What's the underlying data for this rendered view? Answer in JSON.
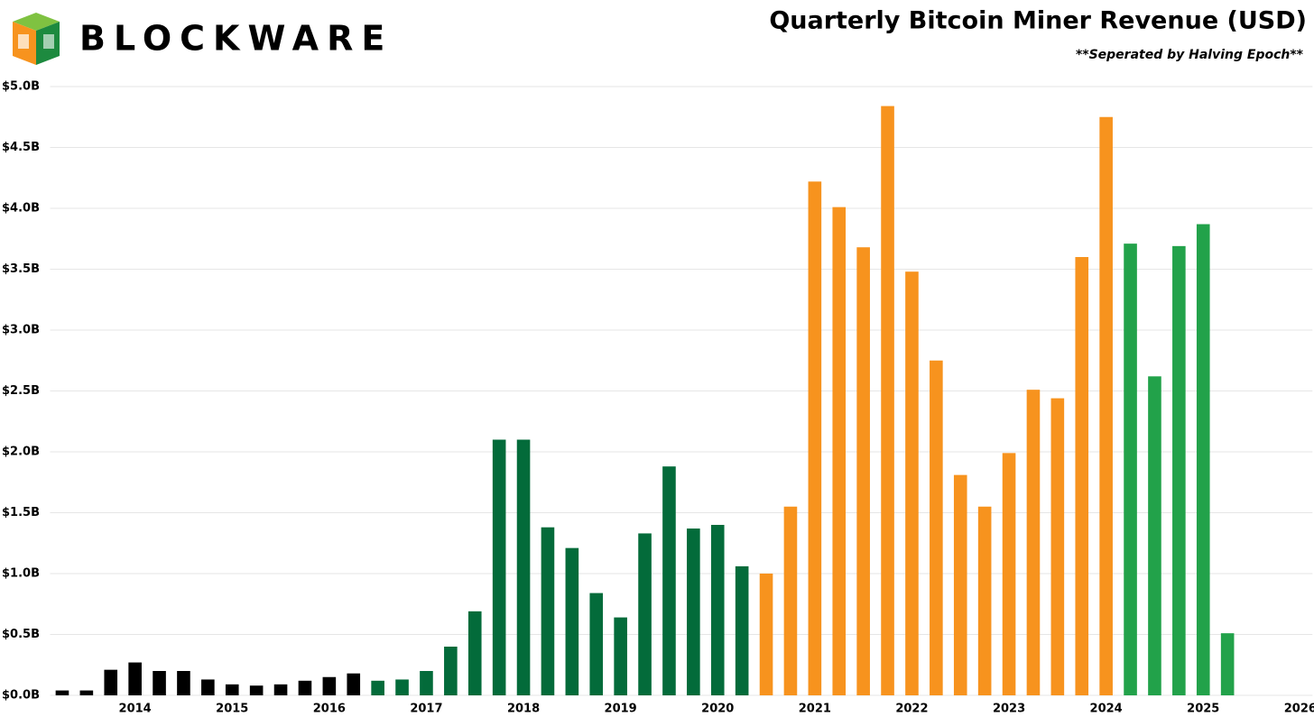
{
  "brand": "BLOCKWARE",
  "chart_data": {
    "type": "bar",
    "title": "Quarterly Bitcoin Miner Revenue (USD)",
    "subtitle": "**Seperated by Halving Epoch**",
    "categories": [
      null,
      null,
      null,
      "2014",
      null,
      null,
      null,
      "2015",
      null,
      null,
      null,
      "2016",
      null,
      null,
      null,
      "2017",
      null,
      null,
      null,
      "2018",
      null,
      null,
      null,
      "2019",
      null,
      null,
      null,
      "2020",
      null,
      null,
      null,
      "2021",
      null,
      null,
      null,
      "2022",
      null,
      null,
      null,
      "2023",
      null,
      null,
      null,
      "2024",
      null,
      null,
      null,
      "2025",
      null,
      null,
      null,
      "2026"
    ],
    "values": [
      0.04,
      0.04,
      0.21,
      0.27,
      0.2,
      0.2,
      0.13,
      0.09,
      0.08,
      0.09,
      0.12,
      0.15,
      0.18,
      0.12,
      0.13,
      0.2,
      0.4,
      0.69,
      2.1,
      2.1,
      1.38,
      1.21,
      0.84,
      0.64,
      1.33,
      1.88,
      1.37,
      1.4,
      1.06,
      1.0,
      1.55,
      4.22,
      4.01,
      3.68,
      4.84,
      3.48,
      2.75,
      1.81,
      1.55,
      1.99,
      2.51,
      2.44,
      3.6,
      4.75,
      3.71,
      2.62,
      3.69,
      3.87,
      0.51,
      null,
      null,
      null
    ],
    "colors": [
      "#000000",
      "#000000",
      "#000000",
      "#000000",
      "#000000",
      "#000000",
      "#000000",
      "#000000",
      "#000000",
      "#000000",
      "#000000",
      "#000000",
      "#000000",
      "#036b3a",
      "#036b3a",
      "#036b3a",
      "#036b3a",
      "#036b3a",
      "#036b3a",
      "#036b3a",
      "#036b3a",
      "#036b3a",
      "#036b3a",
      "#036b3a",
      "#036b3a",
      "#036b3a",
      "#036b3a",
      "#036b3a",
      "#036b3a",
      "#f7931e",
      "#f7931e",
      "#f7931e",
      "#f7931e",
      "#f7931e",
      "#f7931e",
      "#f7931e",
      "#f7931e",
      "#f7931e",
      "#f7931e",
      "#f7931e",
      "#f7931e",
      "#f7931e",
      "#f7931e",
      "#f7931e",
      "#22a24a",
      "#22a24a",
      "#22a24a",
      "#22a24a",
      "#22a24a",
      null,
      null,
      null
    ],
    "ylim": [
      0,
      5
    ],
    "yticks": [
      {
        "value": 0,
        "label": "$0.0B"
      },
      {
        "value": 0.5,
        "label": "$0.5B"
      },
      {
        "value": 1,
        "label": "$1.0B"
      },
      {
        "value": 1.5,
        "label": "$1.5B"
      },
      {
        "value": 2,
        "label": "$2.0B"
      },
      {
        "value": 2.5,
        "label": "$2.5B"
      },
      {
        "value": 3,
        "label": "$3.0B"
      },
      {
        "value": 3.5,
        "label": "$3.5B"
      },
      {
        "value": 4,
        "label": "$4.0B"
      },
      {
        "value": 4.5,
        "label": "$4.5B"
      },
      {
        "value": 5,
        "label": "$5.0B"
      }
    ],
    "grid": true
  }
}
